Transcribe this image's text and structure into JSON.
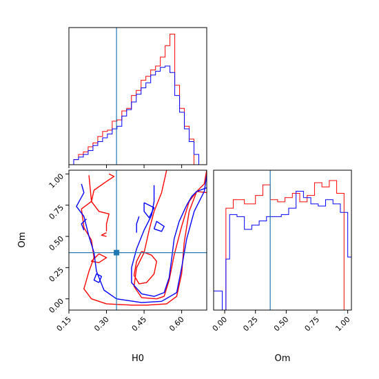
{
  "chart_data": {
    "type": "corner",
    "colors": {
      "series_a": "#ff0000",
      "series_b": "#0000ff",
      "truth": "#1f77b4"
    },
    "parameters": [
      "H0",
      "Om"
    ],
    "truth": {
      "H0": 0.34,
      "Om": 0.37
    },
    "H0_axis": {
      "label": "H0",
      "range": [
        0.15,
        0.7
      ],
      "ticks": [
        "0.15",
        "0.30",
        "0.45",
        "0.60"
      ],
      "tick_values": [
        0.15,
        0.3,
        0.45,
        0.6
      ]
    },
    "Om_axis": {
      "label": "Om",
      "range": [
        -0.09,
        1.03
      ],
      "ticks": [
        "0.00",
        "0.25",
        "0.50",
        "0.75",
        "1.00"
      ],
      "tick_values": [
        0.0,
        0.25,
        0.5,
        0.75,
        1.0
      ]
    },
    "Om_axis_2d": {
      "label": "Om",
      "range": [
        -0.09,
        1.03
      ],
      "ticks": [
        "0.00",
        "0.25",
        "0.50",
        "0.75",
        "1.00"
      ],
      "tick_values": [
        0.0,
        0.25,
        0.5,
        0.75,
        1.0
      ]
    },
    "hist_H0": {
      "bin_edges": [
        0.15,
        0.1692,
        0.1884,
        0.2076,
        0.2268,
        0.246,
        0.2652,
        0.2844,
        0.3036,
        0.3228,
        0.342,
        0.3612,
        0.3804,
        0.3996,
        0.4188,
        0.438,
        0.4572,
        0.4764,
        0.4956,
        0.5148,
        0.534,
        0.5532,
        0.5724,
        0.5916,
        0.6108,
        0.63,
        0.6492,
        0.6684,
        0.6876,
        0.7
      ],
      "series_a": [
        0,
        4,
        8,
        10,
        14,
        17,
        22,
        26,
        27,
        34,
        35,
        42,
        44,
        54,
        58,
        66,
        69,
        74,
        77,
        84,
        93,
        102,
        62,
        44,
        30,
        20,
        0,
        0,
        0
      ],
      "series_b": [
        0,
        4,
        6,
        8,
        11,
        15,
        18,
        21,
        24,
        28,
        30,
        38,
        43,
        49,
        55,
        60,
        64,
        70,
        73,
        76,
        77,
        72,
        54,
        41,
        28,
        18,
        8,
        0,
        0
      ]
    },
    "hist_Om": {
      "bin_edges": [
        -0.09,
        -0.02,
        0.01,
        0.04,
        0.07,
        0.1,
        0.13,
        0.16,
        0.19,
        0.22,
        0.25,
        0.28,
        0.31,
        0.34,
        0.37,
        0.4,
        0.43,
        0.46,
        0.49,
        0.52,
        0.55,
        0.58,
        0.61,
        0.64,
        0.67,
        0.7,
        0.73,
        0.76,
        0.79,
        0.82,
        0.85,
        0.88,
        0.91,
        0.94,
        0.97,
        1.0,
        1.03
      ],
      "series_a": [
        0,
        0,
        48,
        48,
        52,
        52,
        52,
        50,
        50,
        50,
        54,
        54,
        59,
        59,
        52,
        52,
        51,
        51,
        53,
        53,
        55,
        55,
        51,
        51,
        54,
        54,
        60,
        60,
        58,
        58,
        61,
        61,
        55,
        55,
        0,
        0
      ],
      "series_b": [
        9,
        0,
        24,
        45,
        45,
        44,
        44,
        38,
        38,
        40,
        40,
        42,
        42,
        44,
        44,
        44,
        44,
        45,
        45,
        48,
        48,
        56,
        56,
        53,
        53,
        50,
        50,
        49,
        49,
        52,
        52,
        50,
        50,
        46,
        46,
        25
      ]
    },
    "contours": {
      "series_a": [
        [
          [
            0.23,
            0.99
          ],
          [
            0.24,
            0.78
          ],
          [
            0.2,
            0.72
          ],
          [
            0.21,
            0.57
          ],
          [
            0.24,
            0.47
          ],
          [
            0.25,
            0.33
          ],
          [
            0.23,
            0.22
          ],
          [
            0.21,
            0.08
          ],
          [
            0.24,
            0.0
          ],
          [
            0.3,
            -0.04
          ],
          [
            0.4,
            -0.05
          ],
          [
            0.46,
            -0.05
          ],
          [
            0.54,
            -0.04
          ],
          [
            0.58,
            0.02
          ],
          [
            0.6,
            0.2
          ],
          [
            0.61,
            0.45
          ],
          [
            0.63,
            0.7
          ],
          [
            0.66,
            0.86
          ],
          [
            0.69,
            0.92
          ],
          [
            0.7,
            1.03
          ]
        ],
        [
          [
            0.54,
            1.03
          ],
          [
            0.52,
            0.85
          ],
          [
            0.49,
            0.7
          ],
          [
            0.47,
            0.55
          ],
          [
            0.45,
            0.37
          ],
          [
            0.42,
            0.25
          ],
          [
            0.41,
            0.1
          ],
          [
            0.44,
            0.01
          ],
          [
            0.5,
            0.0
          ],
          [
            0.53,
            0.02
          ],
          [
            0.55,
            0.15
          ],
          [
            0.57,
            0.35
          ],
          [
            0.6,
            0.58
          ],
          [
            0.63,
            0.78
          ],
          [
            0.66,
            0.86
          ],
          [
            0.7,
            0.85
          ]
        ],
        [
          [
            0.44,
            0.38
          ],
          [
            0.48,
            0.35
          ],
          [
            0.5,
            0.3
          ],
          [
            0.49,
            0.2
          ],
          [
            0.46,
            0.13
          ],
          [
            0.43,
            0.12
          ],
          [
            0.41,
            0.19
          ],
          [
            0.42,
            0.3
          ],
          [
            0.44,
            0.38
          ]
        ],
        [
          [
            0.3,
            0.54
          ],
          [
            0.3,
            0.6
          ],
          [
            0.31,
            0.68
          ],
          [
            0.27,
            0.7
          ],
          [
            0.24,
            0.78
          ],
          [
            0.25,
            0.87
          ],
          [
            0.3,
            0.94
          ],
          [
            0.33,
            0.98
          ],
          [
            0.31,
            1.0
          ]
        ],
        [
          [
            0.27,
            0.36
          ],
          [
            0.3,
            0.33
          ],
          [
            0.27,
            0.29
          ],
          [
            0.24,
            0.3
          ],
          [
            0.27,
            0.36
          ]
        ],
        [
          [
            0.3,
            0.5
          ],
          [
            0.28,
            0.51
          ],
          [
            0.3,
            0.53
          ]
        ]
      ],
      "series_b": [
        [
          [
            0.2,
            0.92
          ],
          [
            0.21,
            0.85
          ],
          [
            0.18,
            0.74
          ],
          [
            0.21,
            0.66
          ],
          [
            0.23,
            0.5
          ],
          [
            0.25,
            0.37
          ],
          [
            0.26,
            0.22
          ],
          [
            0.29,
            0.07
          ],
          [
            0.34,
            0.0
          ],
          [
            0.44,
            -0.03
          ],
          [
            0.52,
            -0.02
          ],
          [
            0.58,
            0.05
          ],
          [
            0.6,
            0.25
          ],
          [
            0.62,
            0.48
          ],
          [
            0.65,
            0.7
          ],
          [
            0.69,
            0.86
          ],
          [
            0.7,
            0.99
          ]
        ],
        [
          [
            0.49,
            0.91
          ],
          [
            0.49,
            0.78
          ],
          [
            0.48,
            0.67
          ],
          [
            0.45,
            0.55
          ],
          [
            0.42,
            0.4
          ],
          [
            0.4,
            0.25
          ],
          [
            0.4,
            0.13
          ],
          [
            0.44,
            0.04
          ],
          [
            0.49,
            0.02
          ],
          [
            0.53,
            0.05
          ],
          [
            0.55,
            0.17
          ],
          [
            0.56,
            0.32
          ],
          [
            0.57,
            0.48
          ],
          [
            0.59,
            0.62
          ],
          [
            0.62,
            0.75
          ],
          [
            0.64,
            0.82
          ],
          [
            0.66,
            0.86
          ],
          [
            0.7,
            0.89
          ]
        ],
        [
          [
            0.27,
            0.13
          ],
          [
            0.28,
            0.18
          ],
          [
            0.26,
            0.2
          ],
          [
            0.25,
            0.15
          ],
          [
            0.27,
            0.13
          ]
        ],
        [
          [
            0.45,
            0.77
          ],
          [
            0.49,
            0.73
          ],
          [
            0.47,
            0.65
          ],
          [
            0.45,
            0.7
          ],
          [
            0.45,
            0.77
          ]
        ],
        [
          [
            0.21,
            0.55
          ],
          [
            0.2,
            0.6
          ],
          [
            0.22,
            0.64
          ]
        ],
        [
          [
            0.42,
            0.53
          ],
          [
            0.42,
            0.6
          ],
          [
            0.43,
            0.66
          ]
        ],
        [
          [
            0.49,
            0.56
          ],
          [
            0.52,
            0.54
          ],
          [
            0.53,
            0.58
          ],
          [
            0.5,
            0.62
          ],
          [
            0.49,
            0.56
          ]
        ]
      ]
    }
  }
}
